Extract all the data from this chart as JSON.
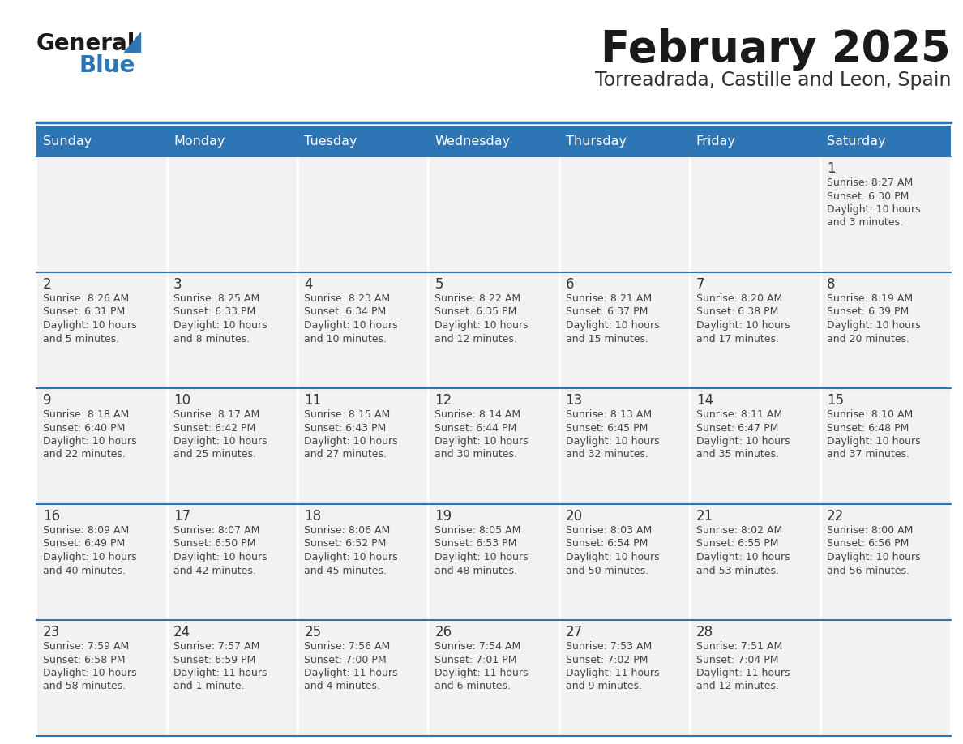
{
  "title": "February 2025",
  "subtitle": "Torreadrada, Castille and Leon, Spain",
  "days_of_week": [
    "Sunday",
    "Monday",
    "Tuesday",
    "Wednesday",
    "Thursday",
    "Friday",
    "Saturday"
  ],
  "header_bg": "#2E75B6",
  "header_text": "#FFFFFF",
  "cell_bg": "#F2F2F2",
  "cell_bg_white": "#FFFFFF",
  "row_border_color": "#2E75B6",
  "day_num_color": "#333333",
  "info_color": "#444444",
  "title_color": "#1a1a1a",
  "subtitle_color": "#333333",
  "logo_general_color": "#1a1a1a",
  "logo_blue_color": "#2E75B6",
  "weeks": [
    [
      {
        "day": null,
        "info": ""
      },
      {
        "day": null,
        "info": ""
      },
      {
        "day": null,
        "info": ""
      },
      {
        "day": null,
        "info": ""
      },
      {
        "day": null,
        "info": ""
      },
      {
        "day": null,
        "info": ""
      },
      {
        "day": 1,
        "info": "Sunrise: 8:27 AM\nSunset: 6:30 PM\nDaylight: 10 hours\nand 3 minutes."
      }
    ],
    [
      {
        "day": 2,
        "info": "Sunrise: 8:26 AM\nSunset: 6:31 PM\nDaylight: 10 hours\nand 5 minutes."
      },
      {
        "day": 3,
        "info": "Sunrise: 8:25 AM\nSunset: 6:33 PM\nDaylight: 10 hours\nand 8 minutes."
      },
      {
        "day": 4,
        "info": "Sunrise: 8:23 AM\nSunset: 6:34 PM\nDaylight: 10 hours\nand 10 minutes."
      },
      {
        "day": 5,
        "info": "Sunrise: 8:22 AM\nSunset: 6:35 PM\nDaylight: 10 hours\nand 12 minutes."
      },
      {
        "day": 6,
        "info": "Sunrise: 8:21 AM\nSunset: 6:37 PM\nDaylight: 10 hours\nand 15 minutes."
      },
      {
        "day": 7,
        "info": "Sunrise: 8:20 AM\nSunset: 6:38 PM\nDaylight: 10 hours\nand 17 minutes."
      },
      {
        "day": 8,
        "info": "Sunrise: 8:19 AM\nSunset: 6:39 PM\nDaylight: 10 hours\nand 20 minutes."
      }
    ],
    [
      {
        "day": 9,
        "info": "Sunrise: 8:18 AM\nSunset: 6:40 PM\nDaylight: 10 hours\nand 22 minutes."
      },
      {
        "day": 10,
        "info": "Sunrise: 8:17 AM\nSunset: 6:42 PM\nDaylight: 10 hours\nand 25 minutes."
      },
      {
        "day": 11,
        "info": "Sunrise: 8:15 AM\nSunset: 6:43 PM\nDaylight: 10 hours\nand 27 minutes."
      },
      {
        "day": 12,
        "info": "Sunrise: 8:14 AM\nSunset: 6:44 PM\nDaylight: 10 hours\nand 30 minutes."
      },
      {
        "day": 13,
        "info": "Sunrise: 8:13 AM\nSunset: 6:45 PM\nDaylight: 10 hours\nand 32 minutes."
      },
      {
        "day": 14,
        "info": "Sunrise: 8:11 AM\nSunset: 6:47 PM\nDaylight: 10 hours\nand 35 minutes."
      },
      {
        "day": 15,
        "info": "Sunrise: 8:10 AM\nSunset: 6:48 PM\nDaylight: 10 hours\nand 37 minutes."
      }
    ],
    [
      {
        "day": 16,
        "info": "Sunrise: 8:09 AM\nSunset: 6:49 PM\nDaylight: 10 hours\nand 40 minutes."
      },
      {
        "day": 17,
        "info": "Sunrise: 8:07 AM\nSunset: 6:50 PM\nDaylight: 10 hours\nand 42 minutes."
      },
      {
        "day": 18,
        "info": "Sunrise: 8:06 AM\nSunset: 6:52 PM\nDaylight: 10 hours\nand 45 minutes."
      },
      {
        "day": 19,
        "info": "Sunrise: 8:05 AM\nSunset: 6:53 PM\nDaylight: 10 hours\nand 48 minutes."
      },
      {
        "day": 20,
        "info": "Sunrise: 8:03 AM\nSunset: 6:54 PM\nDaylight: 10 hours\nand 50 minutes."
      },
      {
        "day": 21,
        "info": "Sunrise: 8:02 AM\nSunset: 6:55 PM\nDaylight: 10 hours\nand 53 minutes."
      },
      {
        "day": 22,
        "info": "Sunrise: 8:00 AM\nSunset: 6:56 PM\nDaylight: 10 hours\nand 56 minutes."
      }
    ],
    [
      {
        "day": 23,
        "info": "Sunrise: 7:59 AM\nSunset: 6:58 PM\nDaylight: 10 hours\nand 58 minutes."
      },
      {
        "day": 24,
        "info": "Sunrise: 7:57 AM\nSunset: 6:59 PM\nDaylight: 11 hours\nand 1 minute."
      },
      {
        "day": 25,
        "info": "Sunrise: 7:56 AM\nSunset: 7:00 PM\nDaylight: 11 hours\nand 4 minutes."
      },
      {
        "day": 26,
        "info": "Sunrise: 7:54 AM\nSunset: 7:01 PM\nDaylight: 11 hours\nand 6 minutes."
      },
      {
        "day": 27,
        "info": "Sunrise: 7:53 AM\nSunset: 7:02 PM\nDaylight: 11 hours\nand 9 minutes."
      },
      {
        "day": 28,
        "info": "Sunrise: 7:51 AM\nSunset: 7:04 PM\nDaylight: 11 hours\nand 12 minutes."
      },
      {
        "day": null,
        "info": ""
      }
    ]
  ],
  "fig_width": 11.88,
  "fig_height": 9.18,
  "dpi": 100
}
